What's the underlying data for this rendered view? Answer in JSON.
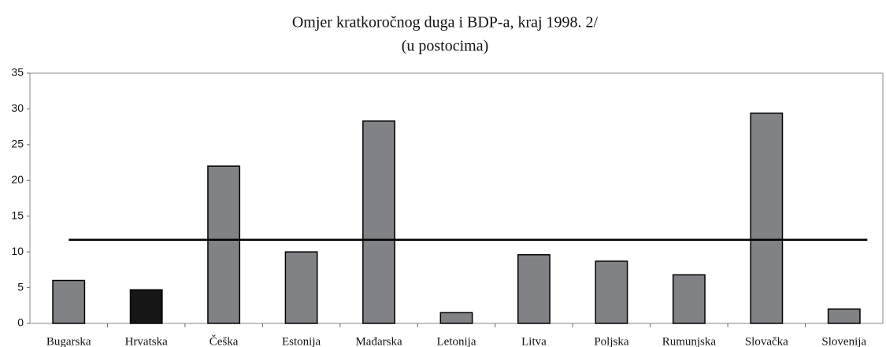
{
  "chart_data": {
    "type": "bar",
    "title": "Omjer kratkoročnog duga i BDP-a, kraj 1998. 2/",
    "subtitle": "(u postocima)",
    "categories": [
      "Bugarska",
      "Hrvatska",
      "Češka",
      "Estonija",
      "Mađarska",
      "Letonija",
      "Litva",
      "Poljska",
      "Rumunjska",
      "Slovačka",
      "Slovenija"
    ],
    "values": [
      6.0,
      4.7,
      22.0,
      10.0,
      28.3,
      1.5,
      9.6,
      8.7,
      6.8,
      29.4,
      2.0
    ],
    "colors": [
      "#808285",
      "#161616",
      "#808285",
      "#808285",
      "#808285",
      "#808285",
      "#808285",
      "#808285",
      "#808285",
      "#808285",
      "#808285"
    ],
    "reference_line": 11.7,
    "ylim": [
      0,
      35
    ],
    "yticks": [
      0,
      5,
      10,
      15,
      20,
      25,
      30,
      35
    ],
    "grid": false
  }
}
